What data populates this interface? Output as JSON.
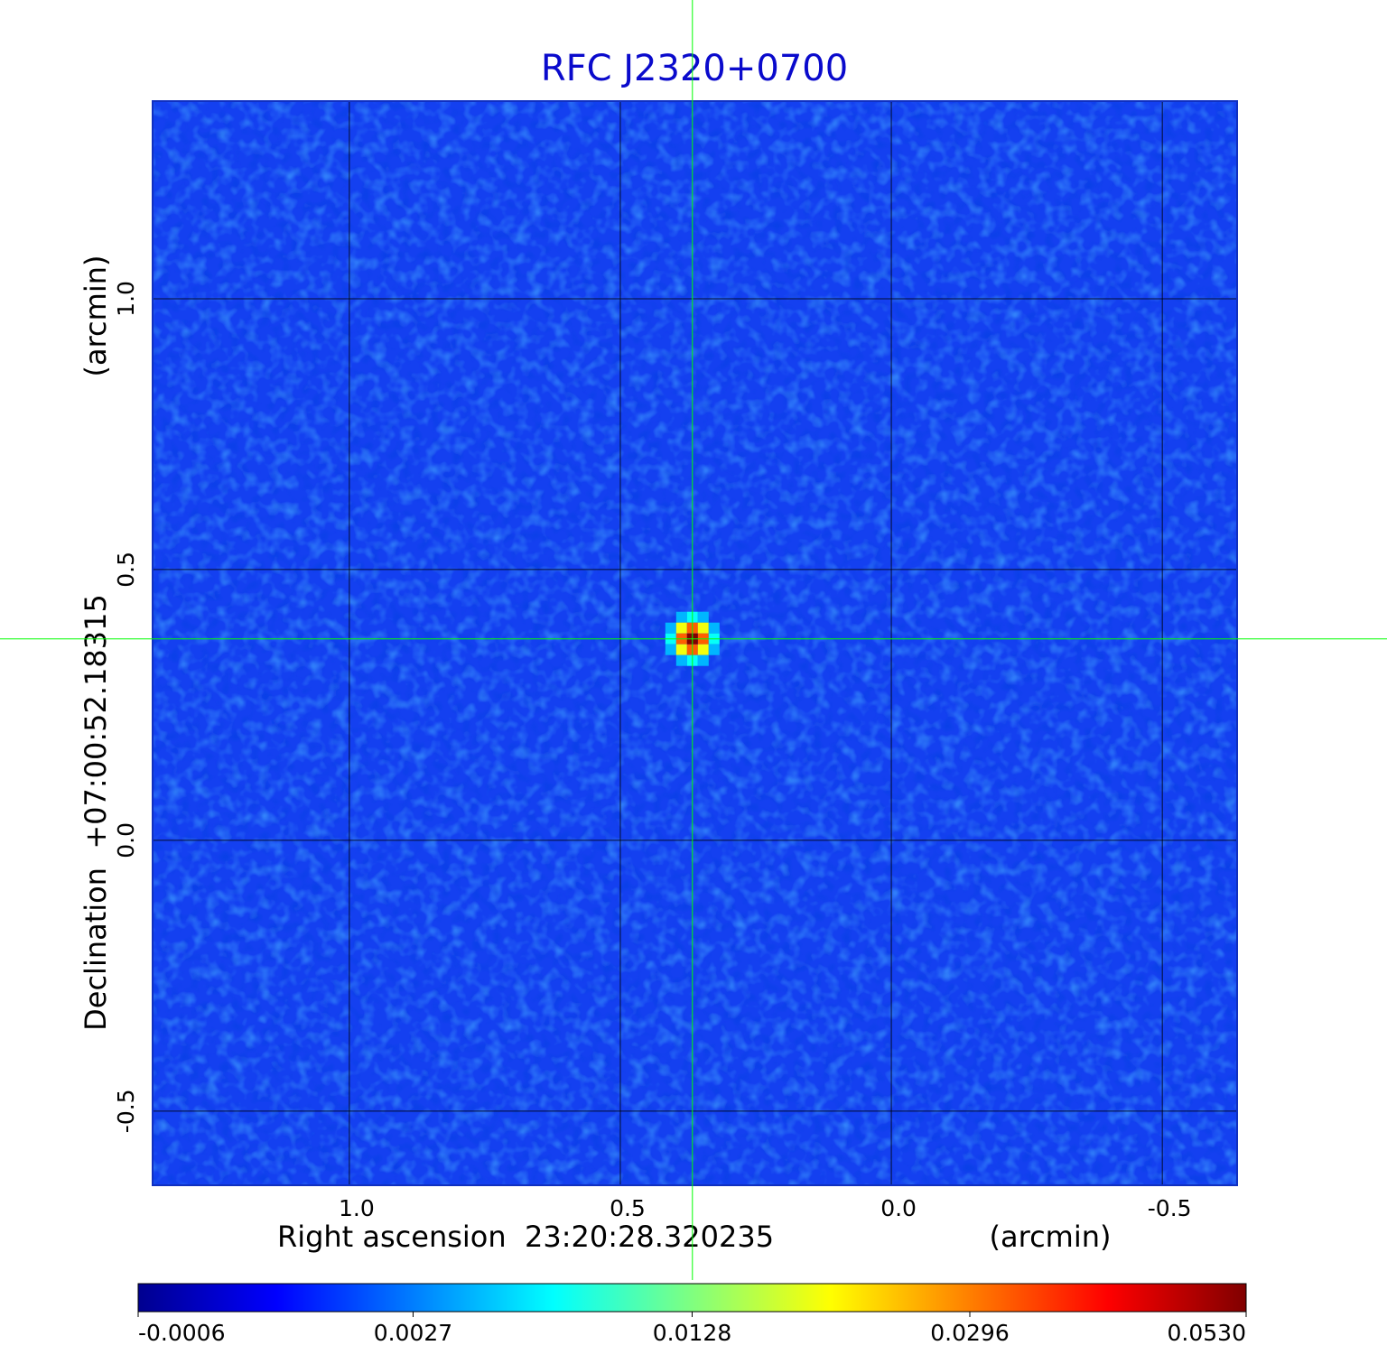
{
  "chart_data": {
    "type": "heatmap",
    "title": "RFC J2320+0700",
    "x_label": "Right ascension  23:20:28.320235",
    "x_unit": "(arcmin)",
    "y_label": "Declination  +07:00:52.18315",
    "y_unit": "(arcmin)",
    "xlim": [
      1.363,
      -0.638
    ],
    "ylim": [
      -0.637,
      1.365
    ],
    "xticks": [
      {
        "value": 1.0,
        "label": "1.0"
      },
      0.5,
      {
        "value": 0.0,
        "label": "0.0"
      },
      -0.5
    ],
    "yticks": [
      -0.5,
      {
        "value": 0.0,
        "label": "0.0"
      },
      0.5,
      {
        "value": 1.0,
        "label": "1.0"
      }
    ],
    "grid": true,
    "grid_color": "#000000",
    "colormap": "jet",
    "color_scale": "sqrt",
    "clim": [
      -0.0006,
      0.053
    ],
    "colorbar_ticks": [
      -0.0006,
      0.0027,
      0.0128,
      0.0296,
      {
        "value": 0.053,
        "label": "0.0530"
      }
    ],
    "source": {
      "x": 0.367,
      "y": 0.372,
      "peak": 0.053
    },
    "crosshair_color": "#00ff00"
  }
}
